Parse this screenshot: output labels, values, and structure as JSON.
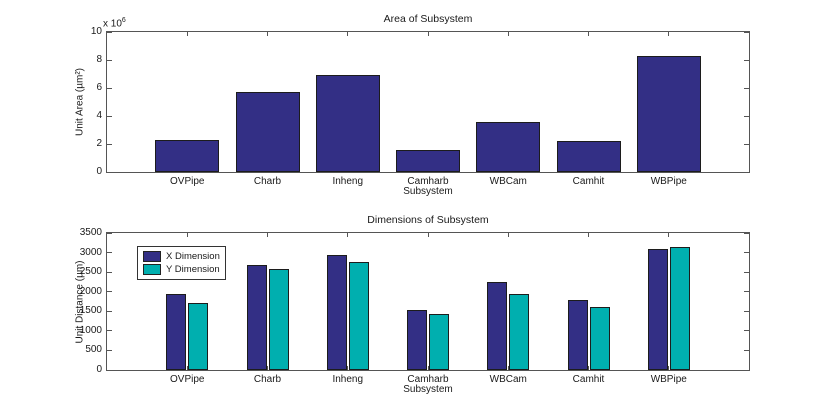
{
  "colors": {
    "bar_navy": "#332F85",
    "bar_teal": "#00AFAF",
    "axis": "#555555",
    "text": "#1a1a1a",
    "background": "#ffffff"
  },
  "chart_data": [
    {
      "type": "bar",
      "title": "Area of Subsystem",
      "ylabel": "Unit Area (µm²)",
      "xlabel": "Subsystem",
      "exponent": {
        "prefix": "x 10",
        "value": "6"
      },
      "unit_multiplier": 1000000,
      "categories": [
        "OVPipe",
        "Charb",
        "Inheng",
        "Camharb",
        "WBCam",
        "Camhit",
        "WBPipe"
      ],
      "values": [
        2.3,
        5.75,
        6.9,
        1.6,
        3.55,
        2.25,
        8.3
      ],
      "bar_color": "#332F85",
      "ylim": [
        0,
        10
      ],
      "yticks": [
        0,
        2,
        4,
        6,
        8,
        10
      ],
      "grid": false,
      "legend": null
    },
    {
      "type": "bar",
      "title": "Dimensions of Subsystem",
      "ylabel": "Unit Distance (µm)",
      "xlabel": "Subsystem",
      "categories": [
        "OVPipe",
        "Charb",
        "Inheng",
        "Camharb",
        "WBCam",
        "Camhit",
        "WBPipe"
      ],
      "series": [
        {
          "name": "X Dimension",
          "color": "#332F85",
          "values": [
            1950,
            2680,
            2950,
            1540,
            2250,
            1800,
            3080
          ]
        },
        {
          "name": "Y Dimension",
          "color": "#00AFAF",
          "values": [
            1710,
            2580,
            2760,
            1420,
            1950,
            1600,
            3150
          ]
        }
      ],
      "ylim": [
        0,
        3500
      ],
      "yticks": [
        0,
        500,
        1000,
        1500,
        2000,
        2500,
        3000,
        3500
      ],
      "grid": false,
      "legend": {
        "position": "top-left"
      }
    }
  ]
}
